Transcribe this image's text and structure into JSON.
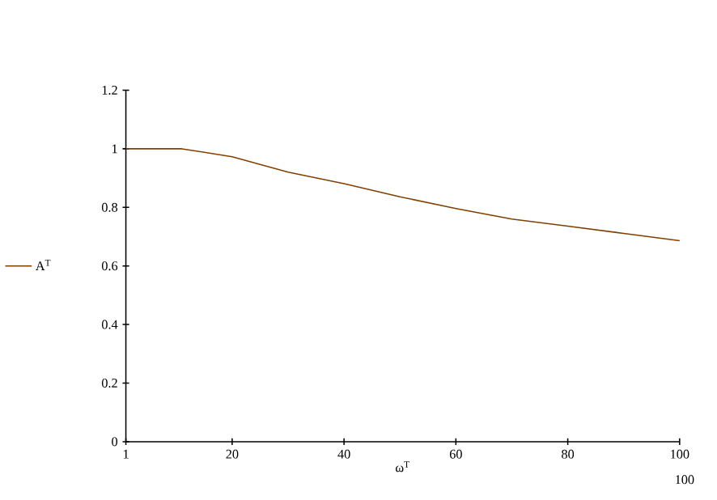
{
  "chart_data": {
    "type": "line",
    "x": [
      1,
      11,
      20,
      30,
      40,
      50,
      60,
      70,
      80,
      90,
      100
    ],
    "series": [
      {
        "name": "A$^{T}$",
        "color": "#804000",
        "values": [
          1.0,
          1.0,
          0.973,
          0.92,
          0.881,
          0.836,
          0.796,
          0.76,
          0.736,
          0.711,
          0.686
        ]
      }
    ],
    "xlabel": "ω$^{T}$",
    "xlim": [
      1,
      100
    ],
    "xticks": [
      1,
      20,
      40,
      60,
      80,
      100
    ],
    "ylim": [
      0,
      1.2
    ],
    "yticks": [
      0,
      0.2,
      0.4,
      0.6,
      0.8,
      1,
      1.2
    ],
    "annotations": [
      "100"
    ],
    "legend": "left",
    "grid": false,
    "marker": "none",
    "line_style": "solid"
  }
}
